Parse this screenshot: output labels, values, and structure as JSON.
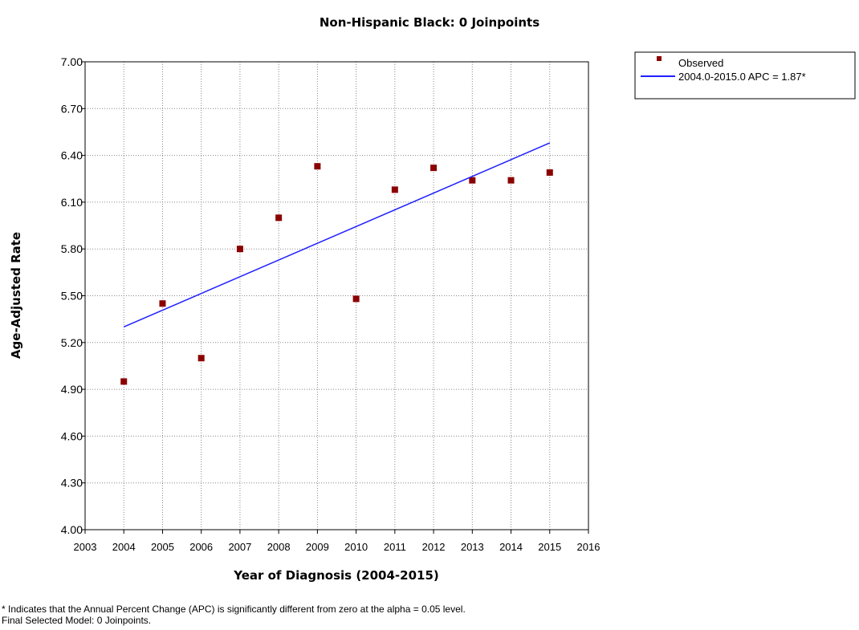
{
  "chart_data": {
    "type": "scatter",
    "title": "Non-Hispanic Black: 0 Joinpoints",
    "x_label": "Year of Diagnosis  (2004-2015)",
    "y_label": "Age-Adjusted Rate",
    "xlim": [
      2003,
      2016
    ],
    "xticks": [
      2003,
      2004,
      2005,
      2006,
      2007,
      2008,
      2009,
      2010,
      2011,
      2012,
      2013,
      2014,
      2015,
      2016
    ],
    "ylim": [
      4,
      7
    ],
    "yticks": [
      {
        "value": 4,
        "label": "4.00"
      },
      {
        "value": 4.3,
        "label": "4.30"
      },
      {
        "value": 4.6,
        "label": "4.60"
      },
      {
        "value": 4.9,
        "label": "4.90"
      },
      {
        "value": 5.2,
        "label": "5.20"
      },
      {
        "value": 5.5,
        "label": "5.50"
      },
      {
        "value": 5.8,
        "label": "5.80"
      },
      {
        "value": 6.1,
        "label": "6.10"
      },
      {
        "value": 6.4,
        "label": "6.40"
      },
      {
        "value": 6.7,
        "label": "6.70"
      },
      {
        "value": 7,
        "label": "7.00"
      }
    ],
    "grid": true,
    "legend": "outside-top-right",
    "series": [
      {
        "name": "Observed",
        "color": "#8b0000",
        "mode": "markers",
        "x": [
          2004,
          2005,
          2006,
          2007,
          2008,
          2009,
          2010,
          2011,
          2012,
          2013,
          2014,
          2015
        ],
        "values": [
          4.95,
          5.45,
          5.1,
          5.8,
          6.0,
          6.33,
          5.48,
          6.18,
          6.32,
          6.24,
          6.24,
          6.29
        ]
      },
      {
        "name": "2004.0-2015.0 APC  = 1.87*",
        "color": "#1f1fff",
        "mode": "line",
        "x": [
          2004,
          2015
        ],
        "values": [
          5.3,
          6.48
        ]
      }
    ],
    "footnotes": [
      "* Indicates that the Annual Percent Change (APC) is significantly different from zero at the alpha = 0.05 level.",
      "Final Selected Model: 0 Joinpoints."
    ]
  }
}
